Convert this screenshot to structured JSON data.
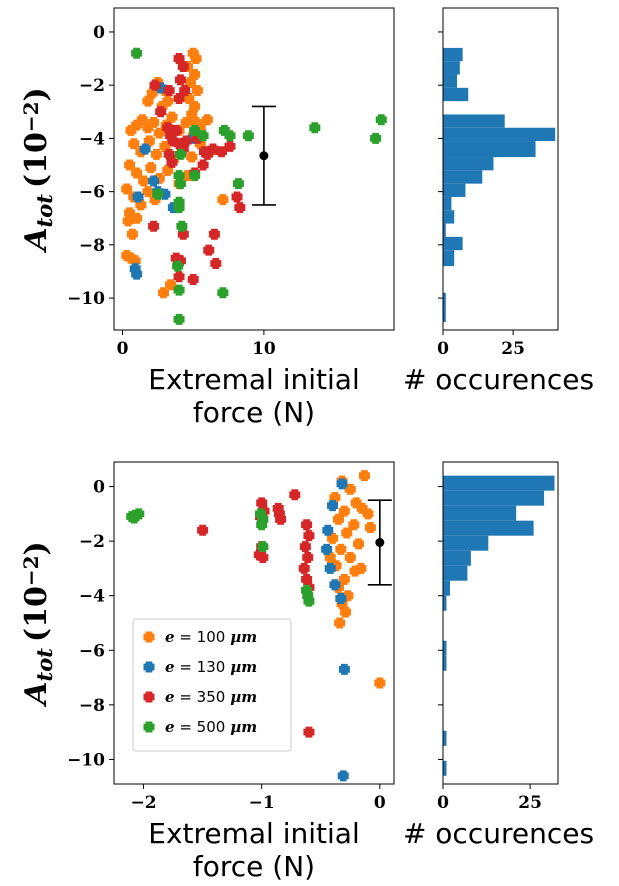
{
  "figure": {
    "colors": {
      "s100": "#ff7f0e",
      "s130": "#1f77b4",
      "s350": "#d62728",
      "s500": "#2ca02c",
      "hist": "#1f77b4",
      "errorbar": "#000000"
    }
  },
  "chart_data": [
    {
      "type": "scatter",
      "panel": "top",
      "xlabel_lines": [
        "Extremal initial",
        "force (N)"
      ],
      "ylabel": "A_tot (10^-2)",
      "ylabel_main": "A",
      "ylabel_sub": "tot",
      "ylabel_paren_open": "(10",
      "ylabel_exp": "−2",
      "ylabel_paren_close": ")",
      "xlim": [
        -0.6,
        19.2
      ],
      "ylim": [
        -11.2,
        0.9
      ],
      "xticks": [
        0,
        10
      ],
      "xtick_labels": [
        "0",
        "10"
      ],
      "yticks": [
        0,
        -2,
        -4,
        -6,
        -8,
        -10
      ],
      "ytick_labels": [
        "0",
        "−2",
        "−4",
        "−6",
        "−8",
        "−10"
      ],
      "errorbar": {
        "x": 10.0,
        "y": -4.65,
        "ylow": -6.5,
        "yhigh": -2.8
      },
      "series": [
        {
          "name": "e = 100 µm",
          "color_key": "s100",
          "points": [
            [
              5.0,
              -0.8
            ],
            [
              5.2,
              -1.0
            ],
            [
              4.6,
              -1.3
            ],
            [
              5.1,
              -1.6
            ],
            [
              4.8,
              -1.9
            ],
            [
              5.3,
              -2.2
            ],
            [
              4.7,
              -2.5
            ],
            [
              5.1,
              -2.8
            ],
            [
              4.9,
              -3.1
            ],
            [
              5.2,
              -3.4
            ],
            [
              2.5,
              -1.9
            ],
            [
              2.1,
              -2.3
            ],
            [
              1.8,
              -2.6
            ],
            [
              3.0,
              -2.2
            ],
            [
              2.8,
              -2.8
            ],
            [
              3.2,
              -2.6
            ],
            [
              0.6,
              -3.7
            ],
            [
              1.0,
              -3.5
            ],
            [
              1.4,
              -3.3
            ],
            [
              1.8,
              -3.6
            ],
            [
              2.2,
              -3.4
            ],
            [
              2.6,
              -3.8
            ],
            [
              3.1,
              -3.5
            ],
            [
              3.5,
              -3.2
            ],
            [
              4.0,
              -3.7
            ],
            [
              4.5,
              -3.4
            ],
            [
              5.0,
              -3.9
            ],
            [
              5.5,
              -3.6
            ],
            [
              6.0,
              -3.3
            ],
            [
              0.8,
              -4.2
            ],
            [
              1.3,
              -4.5
            ],
            [
              1.9,
              -4.1
            ],
            [
              2.4,
              -4.6
            ],
            [
              3.0,
              -4.3
            ],
            [
              3.6,
              -4.8
            ],
            [
              4.2,
              -4.4
            ],
            [
              4.9,
              -4.7
            ],
            [
              5.5,
              -4.2
            ],
            [
              6.2,
              -4.5
            ],
            [
              0.5,
              -5.0
            ],
            [
              1.0,
              -5.3
            ],
            [
              1.5,
              -5.6
            ],
            [
              2.0,
              -5.1
            ],
            [
              2.6,
              -5.5
            ],
            [
              3.2,
              -5.2
            ],
            [
              4.0,
              -5.7
            ],
            [
              4.6,
              -5.4
            ],
            [
              0.3,
              -5.9
            ],
            [
              0.8,
              -6.2
            ],
            [
              1.3,
              -6.5
            ],
            [
              1.8,
              -6.0
            ],
            [
              2.3,
              -6.3
            ],
            [
              0.5,
              -6.8
            ],
            [
              1.0,
              -7.0
            ],
            [
              0.4,
              -7.1
            ],
            [
              0.7,
              -7.6
            ],
            [
              0.3,
              -8.4
            ],
            [
              0.6,
              -8.5
            ],
            [
              0.9,
              -8.6
            ],
            [
              2.9,
              -9.8
            ],
            [
              3.4,
              -9.5
            ],
            [
              7.1,
              -6.3
            ]
          ]
        },
        {
          "name": "e = 130 µm",
          "color_key": "s130",
          "points": [
            [
              2.7,
              -2.1
            ],
            [
              1.6,
              -4.4
            ],
            [
              2.2,
              -5.6
            ],
            [
              2.5,
              -6.0
            ],
            [
              3.0,
              -6.1
            ],
            [
              1.1,
              -6.2
            ],
            [
              3.6,
              -6.6
            ],
            [
              0.9,
              -8.9
            ],
            [
              1.0,
              -9.1
            ],
            [
              5.0,
              -4.0
            ]
          ]
        },
        {
          "name": "e = 350 µm",
          "color_key": "s350",
          "points": [
            [
              4.0,
              -1.0
            ],
            [
              4.3,
              -1.3
            ],
            [
              4.1,
              -1.8
            ],
            [
              4.4,
              -2.2
            ],
            [
              4.0,
              -2.5
            ],
            [
              2.3,
              -2.0
            ],
            [
              3.3,
              -2.2
            ],
            [
              2.7,
              -3.0
            ],
            [
              3.2,
              -3.6
            ],
            [
              3.4,
              -3.9
            ],
            [
              3.6,
              -4.1
            ],
            [
              3.8,
              -3.7
            ],
            [
              4.0,
              -4.2
            ],
            [
              3.3,
              -4.6
            ],
            [
              3.5,
              -4.9
            ],
            [
              4.3,
              -4.4
            ],
            [
              4.5,
              -4.1
            ],
            [
              5.3,
              -4.0
            ],
            [
              5.8,
              -4.5
            ],
            [
              6.0,
              -4.6
            ],
            [
              6.4,
              -4.4
            ],
            [
              7.0,
              -4.5
            ],
            [
              7.6,
              -4.3
            ],
            [
              5.1,
              -5.3
            ],
            [
              5.7,
              -5.0
            ],
            [
              8.1,
              -6.2
            ],
            [
              8.3,
              -6.6
            ],
            [
              2.2,
              -7.3
            ],
            [
              4.3,
              -7.6
            ],
            [
              6.5,
              -7.6
            ],
            [
              6.1,
              -8.2
            ],
            [
              3.8,
              -8.5
            ],
            [
              4.1,
              -8.6
            ],
            [
              6.6,
              -8.7
            ],
            [
              4.0,
              -9.2
            ],
            [
              5.0,
              -9.3
            ]
          ]
        },
        {
          "name": "e = 500 µm",
          "color_key": "s500",
          "points": [
            [
              1.0,
              -0.8
            ],
            [
              5.1,
              -3.7
            ],
            [
              5.7,
              -3.9
            ],
            [
              7.2,
              -3.7
            ],
            [
              7.6,
              -3.9
            ],
            [
              8.9,
              -3.9
            ],
            [
              13.6,
              -3.6
            ],
            [
              18.3,
              -3.3
            ],
            [
              17.9,
              -4.0
            ],
            [
              4.1,
              -4.6
            ],
            [
              4.0,
              -5.4
            ],
            [
              4.1,
              -5.7
            ],
            [
              5.1,
              -5.4
            ],
            [
              8.2,
              -5.7
            ],
            [
              4.0,
              -6.4
            ],
            [
              4.0,
              -6.6
            ],
            [
              4.2,
              -7.3
            ],
            [
              3.9,
              -8.8
            ],
            [
              4.0,
              -9.7
            ],
            [
              7.1,
              -9.8
            ],
            [
              4.0,
              -10.8
            ],
            [
              2.5,
              -6.1
            ]
          ]
        }
      ]
    },
    {
      "type": "bar",
      "panel": "top-hist",
      "orientation": "horizontal",
      "xlabel": "# occurences",
      "xlim": [
        0,
        41
      ],
      "ylim": [
        -11.2,
        0.9
      ],
      "xticks": [
        0,
        25
      ],
      "xtick_labels": [
        "0",
        "25"
      ],
      "yticks": [
        0,
        -2,
        -4,
        -6,
        -8,
        -10
      ],
      "bin_edges": [
        -10.9,
        -10.3,
        -9.8,
        -9.3,
        -8.8,
        -8.2,
        -7.7,
        -7.2,
        -6.7,
        -6.2,
        -5.7,
        -5.2,
        -4.7,
        -4.1,
        -3.6,
        -3.1,
        -2.6,
        -2.1,
        -1.6,
        -1.1,
        -0.6
      ],
      "counts": [
        1,
        1,
        0,
        0,
        4,
        7,
        1,
        4,
        3,
        8,
        14,
        18,
        33,
        40,
        22,
        0,
        9,
        5,
        6,
        7
      ]
    },
    {
      "type": "scatter",
      "panel": "bottom",
      "xlabel_lines": [
        "Extremal initial",
        "force (N)"
      ],
      "ylabel": "A_tot (10^-2)",
      "ylabel_main": "A",
      "ylabel_sub": "tot",
      "ylabel_paren_open": "(10",
      "ylabel_exp": "−2",
      "ylabel_paren_close": ")",
      "xlim": [
        -2.25,
        0.12
      ],
      "ylim": [
        -10.9,
        0.9
      ],
      "xticks": [
        -2,
        -1,
        0
      ],
      "xtick_labels": [
        "−2",
        "−1",
        "0"
      ],
      "yticks": [
        0,
        -2,
        -4,
        -6,
        -8,
        -10
      ],
      "ytick_labels": [
        "0",
        "−2",
        "−4",
        "−6",
        "−8",
        "−10"
      ],
      "errorbar": {
        "x": 0.0,
        "y": -2.05,
        "ylow": -3.6,
        "yhigh": -0.5
      },
      "legend": {
        "position": "lower-left",
        "labels": [
          "e = 100 µm",
          "e = 130 µm",
          "e = 350 µm",
          "e = 500 µm"
        ],
        "e_symbol": "e",
        "equals": " = ",
        "mu_symbol": "µ",
        "values": [
          "100",
          "130",
          "350",
          "500"
        ],
        "unit_rest": "m"
      },
      "series": [
        {
          "name": "e = 100 µm",
          "color_key": "s100",
          "points": [
            [
              -0.13,
              0.4
            ],
            [
              -0.32,
              0.2
            ],
            [
              -0.25,
              -0.1
            ],
            [
              -0.38,
              -0.4
            ],
            [
              -0.2,
              -0.6
            ],
            [
              -0.3,
              -0.9
            ],
            [
              -0.15,
              -0.8
            ],
            [
              -0.35,
              -1.2
            ],
            [
              -0.22,
              -1.4
            ],
            [
              -0.28,
              -1.7
            ],
            [
              -0.4,
              -1.9
            ],
            [
              -0.18,
              -2.1
            ],
            [
              -0.33,
              -2.3
            ],
            [
              -0.25,
              -2.6
            ],
            [
              -0.37,
              -2.9
            ],
            [
              -0.21,
              -3.1
            ],
            [
              -0.3,
              -3.4
            ],
            [
              -0.35,
              -3.7
            ],
            [
              -0.27,
              -4.0
            ],
            [
              -0.32,
              -4.3
            ],
            [
              -0.29,
              -4.6
            ],
            [
              -0.34,
              -5.0
            ],
            [
              -0.1,
              -1.0
            ],
            [
              -0.08,
              -1.5
            ],
            [
              -0.42,
              -2.6
            ],
            [
              -0.16,
              -3.0
            ],
            [
              0.0,
              -7.2
            ]
          ]
        },
        {
          "name": "e = 130 µm",
          "color_key": "s130",
          "points": [
            [
              -0.32,
              0.1
            ],
            [
              -0.4,
              -0.7
            ],
            [
              -0.44,
              -1.6
            ],
            [
              -0.45,
              -2.3
            ],
            [
              -0.42,
              -3.0
            ],
            [
              -0.38,
              -3.6
            ],
            [
              -0.33,
              -4.1
            ],
            [
              -0.3,
              -6.7
            ],
            [
              -0.31,
              -10.6
            ]
          ]
        },
        {
          "name": "e = 350 µm",
          "color_key": "s350",
          "points": [
            [
              -0.72,
              -0.3
            ],
            [
              -1.0,
              -0.6
            ],
            [
              -0.98,
              -0.9
            ],
            [
              -1.01,
              -1.1
            ],
            [
              -0.86,
              -0.8
            ],
            [
              -0.85,
              -1.0
            ],
            [
              -0.84,
              -1.2
            ],
            [
              -1.0,
              -2.2
            ],
            [
              -1.02,
              -2.5
            ],
            [
              -0.99,
              -2.6
            ],
            [
              -0.62,
              -1.4
            ],
            [
              -0.6,
              -1.8
            ],
            [
              -0.63,
              -2.2
            ],
            [
              -0.61,
              -2.6
            ],
            [
              -0.64,
              -3.0
            ],
            [
              -0.62,
              -3.4
            ],
            [
              -0.6,
              -3.7
            ],
            [
              -1.5,
              -1.6
            ],
            [
              -0.6,
              -9.0
            ]
          ]
        },
        {
          "name": "e = 500 µm",
          "color_key": "s500",
          "points": [
            [
              -2.1,
              -1.1
            ],
            [
              -2.07,
              -1.05
            ],
            [
              -2.04,
              -1.0
            ],
            [
              -2.08,
              -1.15
            ],
            [
              -1.01,
              -1.0
            ],
            [
              -0.99,
              -1.2
            ],
            [
              -1.0,
              -1.4
            ],
            [
              -0.99,
              -2.2
            ],
            [
              -0.62,
              -3.8
            ],
            [
              -0.61,
              -4.0
            ],
            [
              -0.6,
              -4.2
            ]
          ]
        }
      ]
    },
    {
      "type": "bar",
      "panel": "bottom-hist",
      "orientation": "horizontal",
      "xlabel": "# occurences",
      "xlim": [
        0,
        33
      ],
      "ylim": [
        -10.9,
        0.9
      ],
      "xticks": [
        0,
        25
      ],
      "xtick_labels": [
        "0",
        "25"
      ],
      "yticks": [
        0,
        -2,
        -4,
        -6,
        -8,
        -10
      ],
      "bin_edges": [
        -10.6,
        -10.05,
        -9.5,
        -8.95,
        -8.4,
        -7.85,
        -7.3,
        -6.75,
        -6.2,
        -5.65,
        -5.1,
        -4.55,
        -4.0,
        -3.45,
        -2.9,
        -2.35,
        -1.8,
        -1.25,
        -0.7,
        -0.15,
        0.4
      ],
      "counts": [
        1,
        0,
        1,
        0,
        0,
        0,
        0,
        1,
        1,
        0,
        0,
        1,
        2,
        7,
        8,
        13,
        26,
        21,
        29,
        32
      ]
    }
  ]
}
